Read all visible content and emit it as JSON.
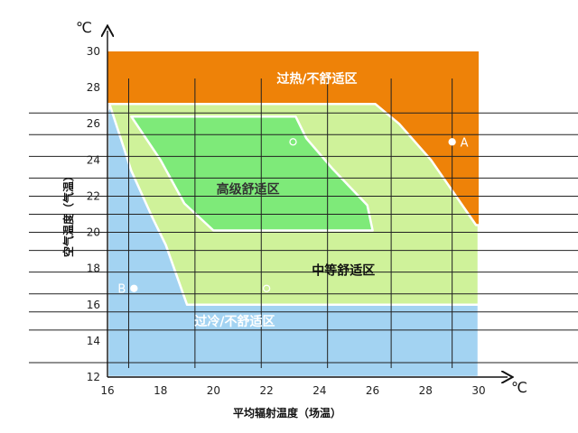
{
  "chart_data": {
    "type": "area",
    "title": "",
    "xlabel": "平均辐射温度（场温）",
    "ylabel": "空气温度（气温）",
    "x_unit": "℃",
    "y_unit": "℃",
    "xlim": [
      16,
      30
    ],
    "ylim": [
      12,
      30
    ],
    "xticks": [
      "16",
      "18",
      "20",
      "22",
      "24",
      "26",
      "28",
      "30"
    ],
    "yticks": [
      "12",
      "14",
      "16",
      "18",
      "20",
      "22",
      "24",
      "26",
      "28",
      "30"
    ],
    "vertical_grid_x": [
      16.8,
      19.3,
      21.8,
      24.3,
      26.7,
      29.0
    ],
    "horizontal_grid_y": [
      12.8,
      14.6,
      15.6,
      16.6,
      17.8,
      19.0,
      20.0,
      21.0,
      22.0,
      23.0,
      24.2,
      25.4,
      26.6
    ],
    "zones": [
      {
        "id": "overheat",
        "label": "过热/不舒适区",
        "color": "#EE8208",
        "label_color": "#ffffff",
        "label_at": [
          23.9,
          28.5
        ],
        "polygon": [
          [
            16,
            30
          ],
          [
            30,
            30
          ],
          [
            30,
            12
          ],
          [
            16,
            12
          ]
        ]
      },
      {
        "id": "medium",
        "label": "中等舒适区",
        "color": "#CFF29A",
        "label_color": "#111111",
        "label_at": [
          24.9,
          17.9
        ],
        "polygon": [
          [
            16,
            27.1
          ],
          [
            26.1,
            27.1
          ],
          [
            27.0,
            26.0
          ],
          [
            28.2,
            24.0
          ],
          [
            29.9,
            20.4
          ],
          [
            30,
            20.4
          ],
          [
            30,
            16
          ],
          [
            16,
            16
          ]
        ]
      },
      {
        "id": "cold",
        "label": "过冷/不舒适区",
        "color": "#A3D3F2",
        "label_color": "#ffffff",
        "label_at": [
          20.8,
          15.1
        ],
        "polygon": [
          [
            16,
            26.7
          ],
          [
            16.1,
            27.0
          ],
          [
            16.9,
            23.4
          ],
          [
            17.7,
            20.8
          ],
          [
            18.2,
            19.3
          ],
          [
            19.0,
            16
          ],
          [
            30,
            16
          ],
          [
            30,
            12
          ],
          [
            16,
            12
          ]
        ]
      },
      {
        "id": "high",
        "label": "高级舒适区",
        "color": "#7EEA79",
        "label_color": "#333333",
        "label_at": [
          21.3,
          22.4
        ],
        "polygon": [
          [
            16.9,
            26.4
          ],
          [
            23.1,
            26.4
          ],
          [
            23.5,
            25.2
          ],
          [
            24.5,
            23.5
          ],
          [
            25.8,
            21.5
          ],
          [
            26.0,
            20.1
          ],
          [
            20.0,
            20.1
          ],
          [
            18.9,
            21.6
          ],
          [
            18.0,
            24.0
          ]
        ]
      }
    ],
    "points": [
      {
        "label": "A",
        "x": 29.0,
        "y": 25.0,
        "filled": true,
        "label_side": "right"
      },
      {
        "label": "B",
        "x": 17.0,
        "y": 16.9,
        "filled": true,
        "label_side": "left"
      },
      {
        "label": "",
        "x": 23.0,
        "y": 25.0,
        "filled": false
      },
      {
        "label": "",
        "x": 22.0,
        "y": 16.9,
        "filled": false
      }
    ]
  }
}
